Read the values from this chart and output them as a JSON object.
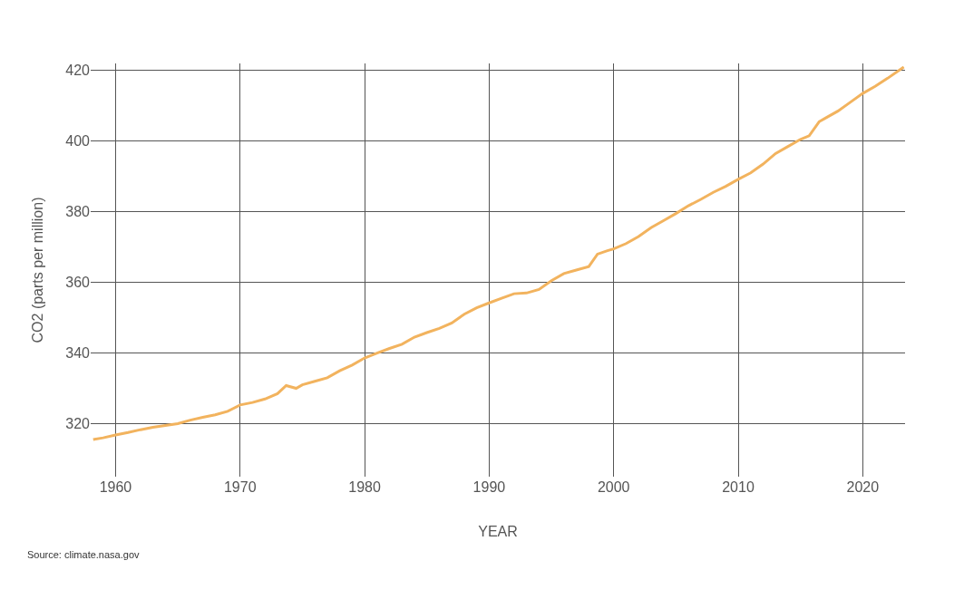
{
  "chart_data": {
    "type": "line",
    "xlabel": "YEAR",
    "ylabel": "CO2 (parts per million)",
    "annotations": [
      "Source: climate.nasa.gov"
    ],
    "x": [
      1958.2,
      1959,
      1960,
      1961,
      1962,
      1963,
      1964,
      1965,
      1966,
      1967,
      1968,
      1969,
      1970,
      1971,
      1972,
      1973,
      1973.7,
      1974.5,
      1975,
      1976,
      1977,
      1978,
      1979,
      1980,
      1981,
      1982,
      1983,
      1984,
      1985,
      1986,
      1987,
      1988,
      1989,
      1990,
      1991,
      1992,
      1993,
      1994,
      1995,
      1996,
      1997,
      1998,
      1998.7,
      1999.5,
      2000,
      2001,
      2002,
      2003,
      2004,
      2005,
      2006,
      2007,
      2008,
      2009,
      2010,
      2011,
      2012,
      2013,
      2014,
      2015,
      2015.7,
      2016.5,
      2017,
      2018,
      2019,
      2020,
      2021,
      2022,
      2023.3
    ],
    "series": [
      {
        "color": "#f2b35e",
        "values": [
          315.5,
          316,
          316.8,
          317.5,
          318.3,
          319,
          319.5,
          320,
          321,
          321.8,
          322.5,
          323.5,
          325.3,
          326,
          327,
          328.5,
          330.8,
          330,
          331,
          332,
          333,
          335,
          336.6,
          338.6,
          340,
          341.3,
          342.5,
          344.5,
          345.8,
          347,
          348.5,
          351,
          352.8,
          354.2,
          355.5,
          356.8,
          357,
          358,
          360.5,
          362.5,
          363.5,
          364.5,
          368,
          369,
          369.5,
          371,
          373,
          375.5,
          377.5,
          379.5,
          381.7,
          383.5,
          385.5,
          387.2,
          389.2,
          391,
          393.5,
          396.5,
          398.5,
          400.5,
          401.5,
          405.5,
          406.5,
          408.5,
          411,
          413.5,
          415.5,
          417.8,
          421
        ]
      }
    ],
    "xlim": [
      1958,
      2023.4
    ],
    "xticks": [
      1960,
      1970,
      1980,
      1990,
      2000,
      2010,
      2020
    ],
    "ylim": [
      305,
      422
    ],
    "yticks": [
      320,
      340,
      360,
      380,
      400,
      420
    ],
    "grid": true,
    "marker": "none",
    "line_style": "solid"
  }
}
